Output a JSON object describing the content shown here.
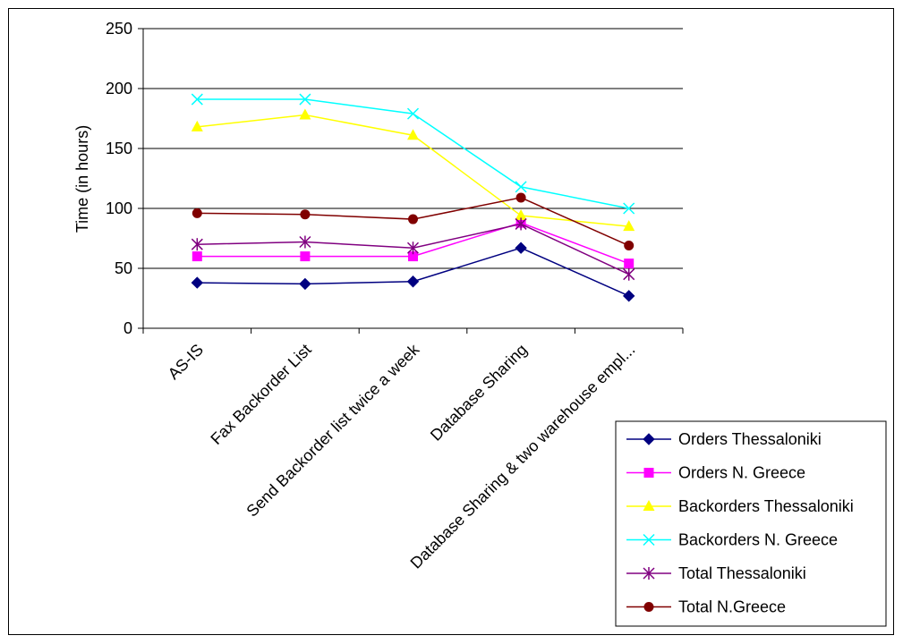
{
  "chart_data": {
    "type": "line",
    "title": "",
    "xlabel": "",
    "ylabel": "Time (in hours)",
    "ylim": [
      0,
      250
    ],
    "yticks": [
      0,
      50,
      100,
      150,
      200,
      250
    ],
    "grid": true,
    "legend_position": "bottom-right",
    "categories": [
      "AS-IS",
      "Fax Backorder List",
      "Send Backorder list twice a week",
      "Database Sharing",
      "Database Sharing & two warehouse empl..."
    ],
    "series": [
      {
        "name": "Orders Thessaloniki",
        "color": "#000080",
        "marker": "diamond",
        "values": [
          38,
          37,
          39,
          67,
          27
        ]
      },
      {
        "name": "Orders N. Greece",
        "color": "#ff00ff",
        "marker": "square",
        "values": [
          60,
          60,
          60,
          88,
          54
        ]
      },
      {
        "name": "Backorders Thessaloniki",
        "color": "#ffff00",
        "marker": "triangle",
        "values": [
          168,
          178,
          161,
          94,
          85
        ]
      },
      {
        "name": "Backorders N. Greece",
        "color": "#00ffff",
        "marker": "x",
        "values": [
          191,
          191,
          179,
          118,
          100
        ]
      },
      {
        "name": "Total Thessaloniki",
        "color": "#800080",
        "marker": "asterisk",
        "values": [
          70,
          72,
          67,
          87,
          45
        ]
      },
      {
        "name": "Total N.Greece",
        "color": "#800000",
        "marker": "circle",
        "values": [
          96,
          95,
          91,
          109,
          69
        ]
      }
    ]
  }
}
